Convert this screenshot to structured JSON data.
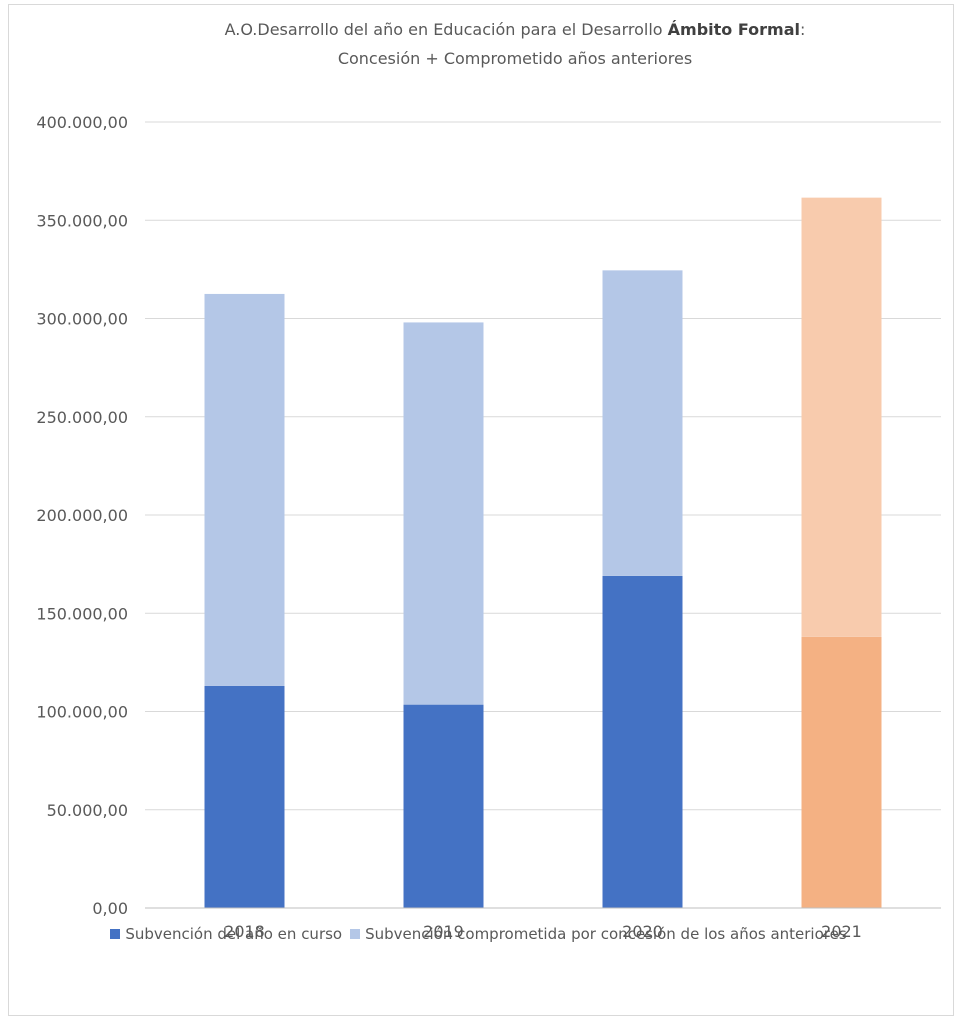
{
  "chart_data": {
    "type": "bar",
    "stacked": true,
    "title": "A.O.Desarrollo del año en Educación para el Desarrollo Ámbito Formal: Concesión + Comprometido años anteriores",
    "title_parts": {
      "line1_prefix": "A.O.Desarrollo del año en Educación para el Desarrollo ",
      "line1_bold": "Ámbito Formal",
      "line1_suffix": ":",
      "line2": "Concesión + Comprometido años anteriores"
    },
    "categories": [
      "2018",
      "2019",
      "2020",
      "2021"
    ],
    "series": [
      {
        "name": "Subvención del año en curso",
        "values": [
          113000,
          103500,
          169000,
          138000
        ],
        "color": "#4472c4",
        "point_colors": [
          "#4472c4",
          "#4472c4",
          "#4472c4",
          "#f4b183"
        ]
      },
      {
        "name": "Subvención comprometida por concesión de los años anteriores",
        "values": [
          199500,
          194500,
          155500,
          223500
        ],
        "color": "#b4c7e7",
        "point_colors": [
          "#b4c7e7",
          "#b4c7e7",
          "#b4c7e7",
          "#f8cbad"
        ]
      }
    ],
    "ylim": [
      0,
      400000
    ],
    "yticks": [
      "0,00",
      "50.000,00",
      "100.000,00",
      "150.000,00",
      "200.000,00",
      "250.000,00",
      "300.000,00",
      "350.000,00",
      "400.000,00"
    ],
    "ytick_values": [
      0,
      50000,
      100000,
      150000,
      200000,
      250000,
      300000,
      350000,
      400000
    ],
    "grid": true,
    "legend_position": "bottom"
  },
  "colors": {
    "text": "#595959",
    "grid": "#d9d9d9",
    "axis": "#bfbfbf"
  }
}
